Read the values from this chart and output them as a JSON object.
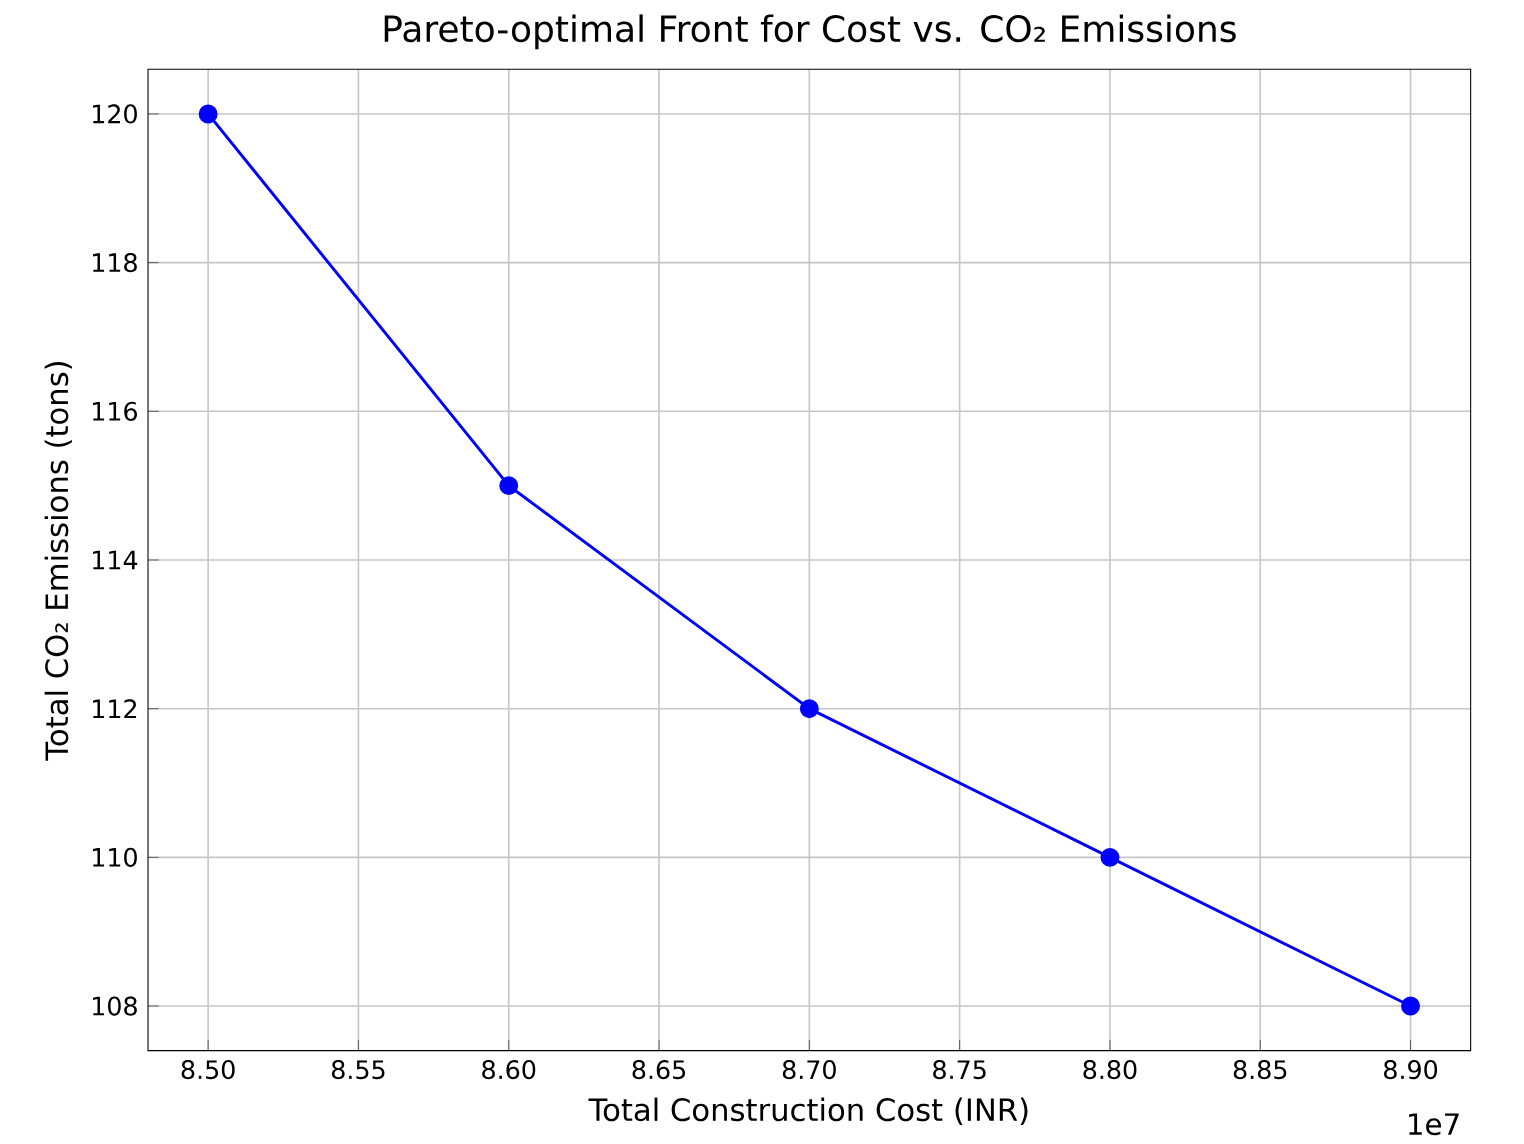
{
  "chart_data": {
    "type": "line",
    "title": "Pareto-optimal Front for Cost vs. CO₂ Emissions",
    "xlabel": "Total Construction Cost (INR)",
    "ylabel": "Total CO₂ Emissions (tons)",
    "annotations": [
      "1e7"
    ],
    "x": [
      8.5,
      8.6,
      8.7,
      8.8,
      8.9
    ],
    "series": [
      {
        "color": "#0000ff",
        "values": [
          120,
          115,
          112,
          110,
          108
        ]
      }
    ],
    "xlim": [
      8.48,
      8.92
    ],
    "ylim": [
      107.4,
      120.6
    ],
    "xticks": [
      {
        "value": 8.5,
        "label": "8.50"
      },
      {
        "value": 8.55,
        "label": "8.55"
      },
      {
        "value": 8.6,
        "label": "8.60"
      },
      {
        "value": 8.65,
        "label": "8.65"
      },
      {
        "value": 8.7,
        "label": "8.70"
      },
      {
        "value": 8.75,
        "label": "8.75"
      },
      {
        "value": 8.8,
        "label": "8.80"
      },
      {
        "value": 8.85,
        "label": "8.85"
      },
      {
        "value": 8.9,
        "label": "8.90"
      }
    ],
    "yticks": [
      108,
      110,
      112,
      114,
      116,
      118,
      120
    ],
    "grid": true,
    "marker": "circle",
    "line_style": "solid"
  }
}
